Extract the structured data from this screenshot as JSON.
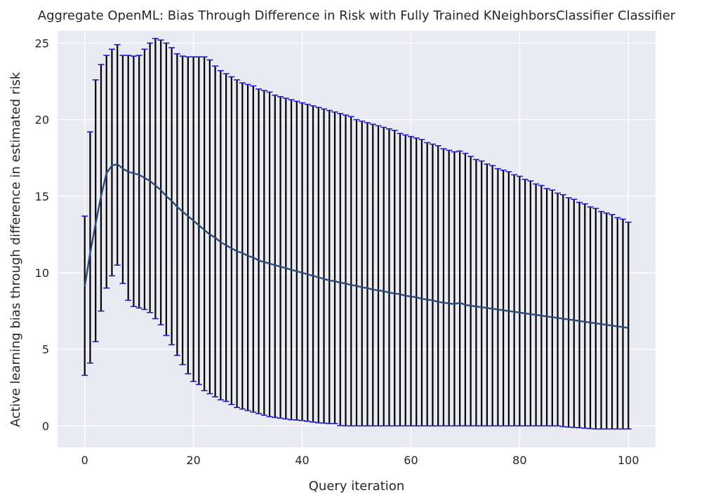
{
  "chart_data": {
    "type": "line",
    "title": "Aggregate OpenML: Bias Through Difference in Risk with Fully Trained KNeighborsClassifier Classifier",
    "xlabel": "Query iteration",
    "ylabel": "Active learning bias through difference in estimated risk",
    "xlim": [
      -5,
      105
    ],
    "ylim": [
      -1.4,
      25.8
    ],
    "xticks": [
      0,
      20,
      40,
      60,
      80,
      100
    ],
    "yticks": [
      0,
      5,
      10,
      15,
      20,
      25
    ],
    "grid": true,
    "legend": "none",
    "error_bars": true,
    "x": [
      0,
      1,
      2,
      3,
      4,
      5,
      6,
      7,
      8,
      9,
      10,
      11,
      12,
      13,
      14,
      15,
      16,
      17,
      18,
      19,
      20,
      21,
      22,
      23,
      24,
      25,
      26,
      27,
      28,
      29,
      30,
      31,
      32,
      33,
      34,
      35,
      36,
      37,
      38,
      39,
      40,
      41,
      42,
      43,
      44,
      45,
      46,
      47,
      48,
      49,
      50,
      51,
      52,
      53,
      54,
      55,
      56,
      57,
      58,
      59,
      60,
      61,
      62,
      63,
      64,
      65,
      66,
      67,
      68,
      69,
      70,
      71,
      72,
      73,
      74,
      75,
      76,
      77,
      78,
      79,
      80,
      81,
      82,
      83,
      84,
      85,
      86,
      87,
      88,
      89,
      90,
      91,
      92,
      93,
      94,
      95,
      96,
      97,
      98,
      99,
      100
    ],
    "series": [
      {
        "mean": [
          9.1,
          11.3,
          13.2,
          15.0,
          16.5,
          17.0,
          17.1,
          16.8,
          16.6,
          16.5,
          16.4,
          16.2,
          16.0,
          15.7,
          15.4,
          15.0,
          14.7,
          14.3,
          14.0,
          13.7,
          13.4,
          13.1,
          12.8,
          12.5,
          12.3,
          12.0,
          11.8,
          11.6,
          11.4,
          11.3,
          11.1,
          11.0,
          10.8,
          10.7,
          10.6,
          10.5,
          10.4,
          10.3,
          10.2,
          10.1,
          10.0,
          9.9,
          9.8,
          9.7,
          9.6,
          9.5,
          9.45,
          9.35,
          9.3,
          9.2,
          9.15,
          9.05,
          9.0,
          8.9,
          8.85,
          8.8,
          8.7,
          8.65,
          8.6,
          8.5,
          8.45,
          8.4,
          8.3,
          8.25,
          8.2,
          8.1,
          8.05,
          8.0,
          7.95,
          8.05,
          7.9,
          7.85,
          7.8,
          7.75,
          7.7,
          7.65,
          7.6,
          7.55,
          7.5,
          7.45,
          7.4,
          7.35,
          7.3,
          7.25,
          7.2,
          7.15,
          7.1,
          7.05,
          7.0,
          6.95,
          6.9,
          6.85,
          6.8,
          6.75,
          6.7,
          6.65,
          6.6,
          6.55,
          6.5,
          6.45,
          6.4
        ],
        "upper": [
          13.7,
          19.2,
          22.6,
          23.6,
          24.2,
          24.6,
          24.9,
          24.2,
          24.2,
          24.15,
          24.2,
          24.6,
          25.0,
          25.3,
          25.2,
          25.0,
          24.7,
          24.3,
          24.15,
          24.1,
          24.1,
          24.1,
          24.1,
          23.9,
          23.5,
          23.2,
          23.0,
          22.8,
          22.6,
          22.4,
          22.3,
          22.2,
          22.0,
          21.9,
          21.8,
          21.6,
          21.5,
          21.4,
          21.3,
          21.2,
          21.1,
          21.0,
          20.9,
          20.8,
          20.7,
          20.6,
          20.5,
          20.4,
          20.3,
          20.2,
          20.0,
          19.9,
          19.8,
          19.7,
          19.6,
          19.5,
          19.4,
          19.3,
          19.1,
          19.0,
          18.9,
          18.8,
          18.7,
          18.5,
          18.4,
          18.3,
          18.1,
          18.0,
          17.9,
          17.95,
          17.8,
          17.6,
          17.4,
          17.3,
          17.1,
          17.0,
          16.8,
          16.7,
          16.6,
          16.4,
          16.3,
          16.1,
          16.0,
          15.8,
          15.7,
          15.5,
          15.4,
          15.2,
          15.1,
          14.9,
          14.8,
          14.6,
          14.5,
          14.3,
          14.2,
          14.0,
          13.9,
          13.8,
          13.6,
          13.5,
          13.3
        ],
        "lower": [
          3.3,
          4.1,
          5.5,
          7.5,
          9.0,
          9.8,
          10.5,
          9.3,
          8.2,
          7.8,
          7.7,
          7.6,
          7.4,
          7.0,
          6.6,
          5.9,
          5.3,
          4.6,
          4.0,
          3.4,
          2.9,
          2.7,
          2.3,
          2.1,
          1.9,
          1.7,
          1.6,
          1.4,
          1.2,
          1.1,
          1.0,
          0.9,
          0.8,
          0.7,
          0.6,
          0.55,
          0.5,
          0.45,
          0.4,
          0.38,
          0.35,
          0.3,
          0.25,
          0.2,
          0.18,
          0.15,
          0.15,
          0.02,
          0.0,
          0.0,
          0.0,
          0.0,
          0.0,
          0.0,
          0.0,
          0.0,
          0.0,
          0.0,
          0.0,
          0.0,
          0.0,
          0.0,
          0.0,
          0.0,
          0.0,
          0.0,
          0.0,
          0.0,
          0.0,
          0.0,
          0.0,
          0.0,
          0.0,
          0.0,
          0.0,
          0.0,
          0.0,
          0.0,
          0.0,
          0.0,
          0.0,
          0.0,
          0.0,
          0.0,
          0.0,
          0.0,
          0.0,
          0.0,
          -0.05,
          -0.08,
          -0.1,
          -0.12,
          -0.15,
          -0.18,
          -0.2,
          -0.2,
          -0.2,
          -0.2,
          -0.2,
          -0.2,
          -0.2
        ]
      }
    ],
    "colors": {
      "background": "#eaeaf2",
      "grid": "#ffffff",
      "line": "#2c4a7a",
      "errorbar": "#000000",
      "cap": "#1f1fc8",
      "text": "#262626"
    }
  }
}
